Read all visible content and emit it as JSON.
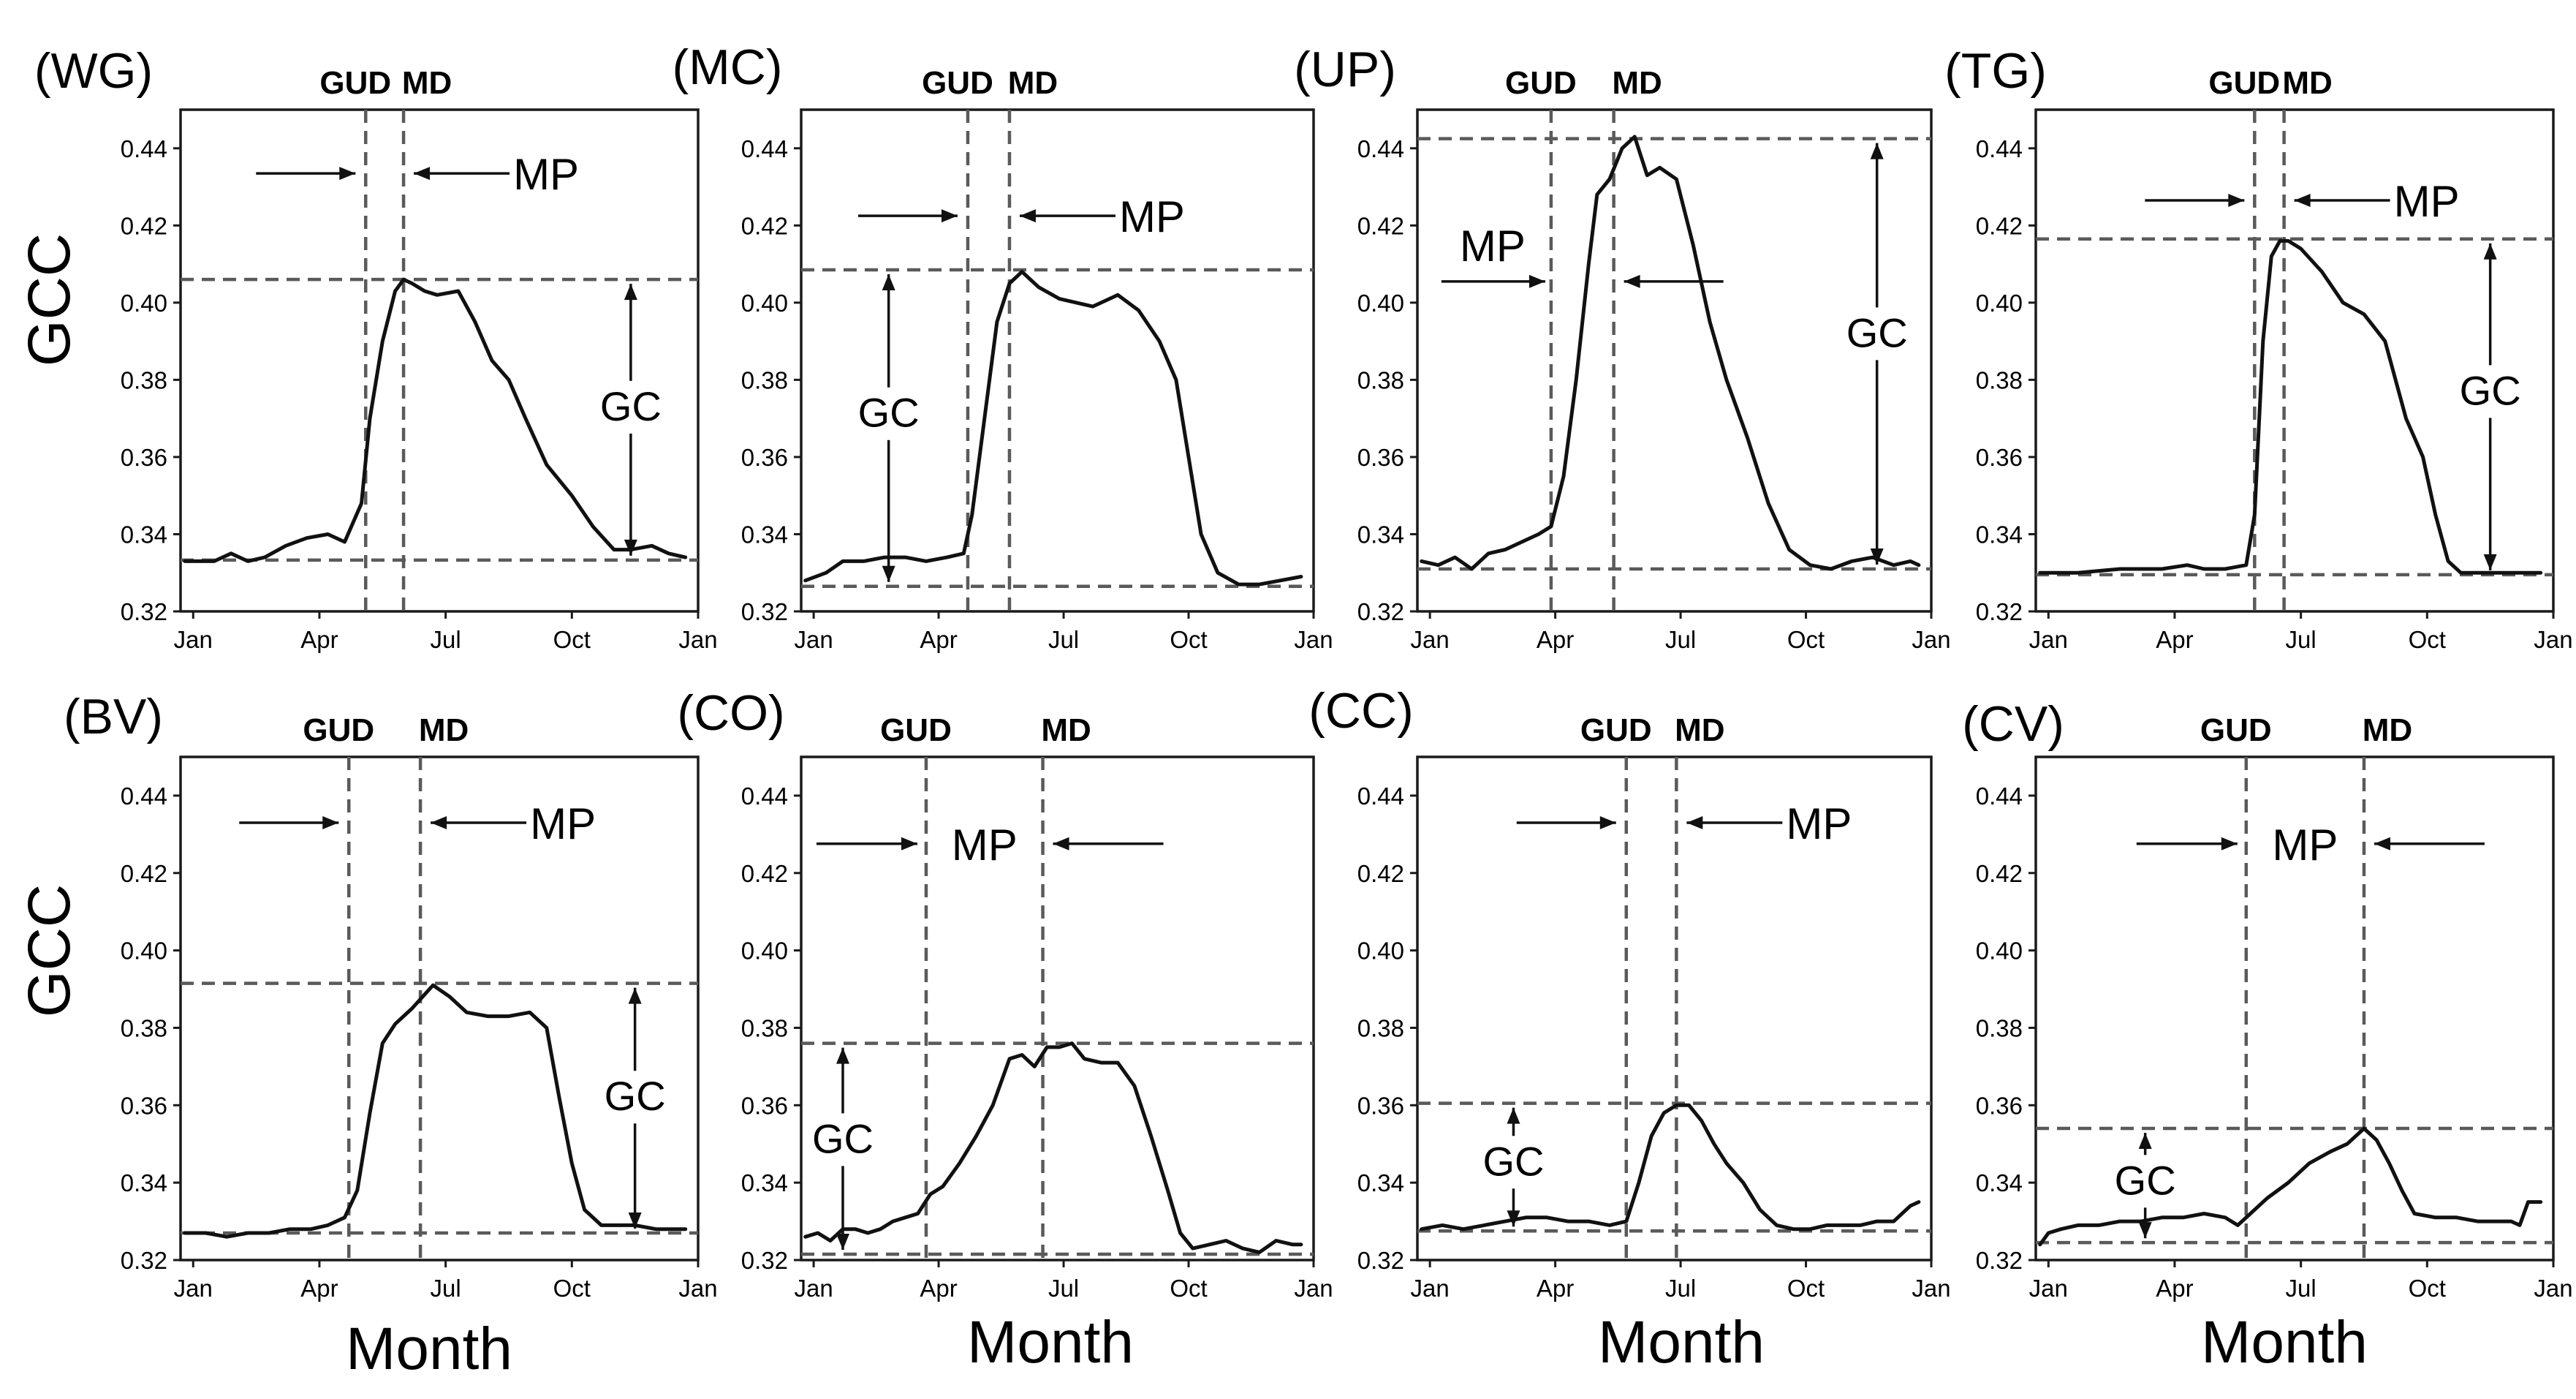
{
  "figure": {
    "y_axis_title": "GCC",
    "x_axis_title": "Month",
    "marker_labels": {
      "gud": "GUD",
      "md": "MD",
      "mp": "MP",
      "gc": "GC"
    }
  },
  "chart_data": [
    {
      "type": "line",
      "label": "(WG)",
      "x_ticks": [
        "Jan",
        "Apr",
        "Jul",
        "Oct",
        "Jan"
      ],
      "y_ticks": [
        "0.32",
        "0.34",
        "0.36",
        "0.38",
        "0.40",
        "0.42",
        "0.44"
      ],
      "ylim": [
        0.32,
        0.45
      ],
      "xlim": [
        0,
        12.3
      ],
      "gud_month": 4.4,
      "md_month": 5.3,
      "baseline_gcc": 0.3333,
      "peak_gcc": 0.406,
      "mp_label_pos": "right",
      "gc_annotation_month": 10.7,
      "series": [
        {
          "name": "GCC",
          "x": [
            0.1,
            0.8,
            1.2,
            1.6,
            2.0,
            2.5,
            3.0,
            3.5,
            3.9,
            4.3,
            4.5,
            4.8,
            5.1,
            5.3,
            5.5,
            5.8,
            6.1,
            6.6,
            7.0,
            7.4,
            7.8,
            8.2,
            8.7,
            9.3,
            9.8,
            10.3,
            10.7,
            11.2,
            11.6,
            12.0
          ],
          "values": [
            0.333,
            0.333,
            0.335,
            0.333,
            0.334,
            0.337,
            0.339,
            0.34,
            0.338,
            0.348,
            0.37,
            0.39,
            0.403,
            0.406,
            0.405,
            0.403,
            0.402,
            0.403,
            0.395,
            0.385,
            0.38,
            0.37,
            0.358,
            0.35,
            0.342,
            0.336,
            0.336,
            0.337,
            0.335,
            0.334
          ]
        }
      ]
    },
    {
      "type": "line",
      "label": "(MC)",
      "x_ticks": [
        "Jan",
        "Apr",
        "Jul",
        "Oct",
        "Jan"
      ],
      "y_ticks": [
        "0.32",
        "0.34",
        "0.36",
        "0.38",
        "0.40",
        "0.42",
        "0.44"
      ],
      "ylim": [
        0.32,
        0.45
      ],
      "xlim": [
        0,
        12.3
      ],
      "gud_month": 4.0,
      "md_month": 5.0,
      "baseline_gcc": 0.3265,
      "peak_gcc": 0.4085,
      "mp_label_pos": "right",
      "gc_annotation_month": 2.1,
      "series": [
        {
          "name": "GCC",
          "x": [
            0.1,
            0.6,
            1.0,
            1.5,
            2.0,
            2.5,
            3.0,
            3.5,
            3.9,
            4.1,
            4.4,
            4.7,
            5.0,
            5.3,
            5.7,
            6.2,
            6.6,
            7.0,
            7.6,
            8.1,
            8.6,
            9.0,
            9.3,
            9.6,
            10.0,
            10.5,
            11.0,
            11.5,
            12.0
          ],
          "values": [
            0.328,
            0.33,
            0.333,
            0.333,
            0.334,
            0.334,
            0.333,
            0.334,
            0.335,
            0.345,
            0.37,
            0.395,
            0.405,
            0.408,
            0.404,
            0.401,
            0.4,
            0.399,
            0.402,
            0.398,
            0.39,
            0.38,
            0.36,
            0.34,
            0.33,
            0.327,
            0.327,
            0.328,
            0.329
          ]
        }
      ]
    },
    {
      "type": "line",
      "label": "(UP)",
      "x_ticks": [
        "Jan",
        "Apr",
        "Jul",
        "Oct",
        "Jan"
      ],
      "y_ticks": [
        "0.32",
        "0.34",
        "0.36",
        "0.38",
        "0.40",
        "0.42",
        "0.44"
      ],
      "ylim": [
        0.32,
        0.45
      ],
      "xlim": [
        0,
        12.3
      ],
      "gud_month": 3.2,
      "md_month": 4.7,
      "baseline_gcc": 0.331,
      "peak_gcc": 0.4425,
      "mp_label_pos": "left",
      "gc_annotation_month": 11.0,
      "series": [
        {
          "name": "GCC",
          "x": [
            0.1,
            0.5,
            0.9,
            1.3,
            1.7,
            2.1,
            2.5,
            2.9,
            3.2,
            3.5,
            3.8,
            4.1,
            4.3,
            4.6,
            4.9,
            5.2,
            5.5,
            5.8,
            6.2,
            6.6,
            7.0,
            7.4,
            7.9,
            8.4,
            8.9,
            9.4,
            9.9,
            10.4,
            10.9,
            11.4,
            11.8,
            12.0
          ],
          "values": [
            0.333,
            0.332,
            0.334,
            0.331,
            0.335,
            0.336,
            0.338,
            0.34,
            0.342,
            0.355,
            0.38,
            0.41,
            0.428,
            0.432,
            0.44,
            0.443,
            0.433,
            0.435,
            0.432,
            0.415,
            0.395,
            0.38,
            0.365,
            0.348,
            0.336,
            0.332,
            0.331,
            0.333,
            0.334,
            0.332,
            0.333,
            0.332
          ]
        }
      ]
    },
    {
      "type": "line",
      "label": "(TG)",
      "x_ticks": [
        "Jan",
        "Apr",
        "Jul",
        "Oct",
        "Jan"
      ],
      "y_ticks": [
        "0.32",
        "0.34",
        "0.36",
        "0.38",
        "0.40",
        "0.42",
        "0.44"
      ],
      "ylim": [
        0.32,
        0.45
      ],
      "xlim": [
        0,
        12.3
      ],
      "gud_month": 5.2,
      "md_month": 5.9,
      "baseline_gcc": 0.3295,
      "peak_gcc": 0.4165,
      "mp_label_pos": "right",
      "gc_annotation_month": 10.8,
      "series": [
        {
          "name": "GCC",
          "x": [
            0.1,
            1.0,
            2.0,
            3.0,
            3.6,
            4.0,
            4.5,
            5.0,
            5.2,
            5.4,
            5.6,
            5.8,
            6.0,
            6.3,
            6.8,
            7.3,
            7.8,
            8.3,
            8.8,
            9.2,
            9.5,
            9.8,
            10.1,
            10.5,
            11.0,
            11.5,
            12.0
          ],
          "values": [
            0.33,
            0.33,
            0.331,
            0.331,
            0.332,
            0.331,
            0.331,
            0.332,
            0.345,
            0.39,
            0.412,
            0.416,
            0.416,
            0.414,
            0.408,
            0.4,
            0.397,
            0.39,
            0.37,
            0.36,
            0.345,
            0.333,
            0.33,
            0.33,
            0.33,
            0.33,
            0.33
          ]
        }
      ]
    },
    {
      "type": "line",
      "label": "(BV)",
      "x_ticks": [
        "Jan",
        "Apr",
        "Jul",
        "Oct",
        "Jan"
      ],
      "y_ticks": [
        "0.32",
        "0.34",
        "0.36",
        "0.38",
        "0.40",
        "0.42",
        "0.44"
      ],
      "ylim": [
        0.32,
        0.45
      ],
      "xlim": [
        0,
        12.3
      ],
      "gud_month": 4.0,
      "md_month": 5.7,
      "baseline_gcc": 0.327,
      "peak_gcc": 0.3915,
      "mp_label_pos": "right",
      "gc_annotation_month": 10.8,
      "series": [
        {
          "name": "GCC",
          "x": [
            0.1,
            0.6,
            1.1,
            1.6,
            2.1,
            2.6,
            3.1,
            3.5,
            3.9,
            4.2,
            4.5,
            4.8,
            5.1,
            5.5,
            6.0,
            6.4,
            6.8,
            7.3,
            7.8,
            8.3,
            8.7,
            9.0,
            9.3,
            9.6,
            10.0,
            10.4,
            10.8,
            11.3,
            11.8,
            12.0
          ],
          "values": [
            0.327,
            0.327,
            0.326,
            0.327,
            0.327,
            0.328,
            0.328,
            0.329,
            0.331,
            0.338,
            0.358,
            0.376,
            0.381,
            0.385,
            0.391,
            0.388,
            0.384,
            0.383,
            0.383,
            0.384,
            0.38,
            0.362,
            0.345,
            0.333,
            0.329,
            0.329,
            0.329,
            0.328,
            0.328,
            0.328
          ]
        }
      ]
    },
    {
      "type": "line",
      "label": "(CO)",
      "x_ticks": [
        "Jan",
        "Apr",
        "Jul",
        "Oct",
        "Jan"
      ],
      "y_ticks": [
        "0.32",
        "0.34",
        "0.36",
        "0.38",
        "0.40",
        "0.42",
        "0.44"
      ],
      "ylim": [
        0.32,
        0.45
      ],
      "xlim": [
        0,
        12.3
      ],
      "gud_month": 3.0,
      "md_month": 5.8,
      "baseline_gcc": 0.3215,
      "peak_gcc": 0.376,
      "mp_label_pos": "between",
      "gc_annotation_month": 1.0,
      "series": [
        {
          "name": "GCC",
          "x": [
            0.1,
            0.4,
            0.7,
            1.0,
            1.3,
            1.6,
            1.9,
            2.2,
            2.5,
            2.8,
            3.1,
            3.4,
            3.8,
            4.2,
            4.6,
            5.0,
            5.3,
            5.6,
            5.9,
            6.2,
            6.5,
            6.8,
            7.2,
            7.6,
            8.0,
            8.4,
            8.8,
            9.1,
            9.4,
            9.8,
            10.2,
            10.6,
            11.0,
            11.4,
            11.8,
            12.0
          ],
          "values": [
            0.326,
            0.327,
            0.325,
            0.328,
            0.328,
            0.327,
            0.328,
            0.33,
            0.331,
            0.332,
            0.337,
            0.339,
            0.345,
            0.352,
            0.36,
            0.372,
            0.373,
            0.37,
            0.375,
            0.375,
            0.376,
            0.372,
            0.371,
            0.371,
            0.365,
            0.352,
            0.338,
            0.327,
            0.323,
            0.324,
            0.325,
            0.323,
            0.322,
            0.325,
            0.324,
            0.324
          ]
        }
      ]
    },
    {
      "type": "line",
      "label": "(CC)",
      "x_ticks": [
        "Jan",
        "Apr",
        "Jul",
        "Oct",
        "Jan"
      ],
      "y_ticks": [
        "0.32",
        "0.34",
        "0.36",
        "0.38",
        "0.40",
        "0.42",
        "0.44"
      ],
      "ylim": [
        0.32,
        0.45
      ],
      "xlim": [
        0,
        12.3
      ],
      "gud_month": 5.0,
      "md_month": 6.2,
      "baseline_gcc": 0.3275,
      "peak_gcc": 0.3605,
      "mp_label_pos": "right",
      "gc_annotation_month": 2.3,
      "series": [
        {
          "name": "GCC",
          "x": [
            0.1,
            0.6,
            1.1,
            1.6,
            2.1,
            2.6,
            3.1,
            3.6,
            4.1,
            4.6,
            5.0,
            5.3,
            5.6,
            5.9,
            6.2,
            6.5,
            6.8,
            7.1,
            7.4,
            7.8,
            8.2,
            8.6,
            9.0,
            9.4,
            9.8,
            10.2,
            10.6,
            11.0,
            11.4,
            11.8,
            12.0
          ],
          "values": [
            0.328,
            0.329,
            0.328,
            0.329,
            0.33,
            0.331,
            0.331,
            0.33,
            0.33,
            0.329,
            0.33,
            0.34,
            0.352,
            0.358,
            0.36,
            0.36,
            0.356,
            0.35,
            0.345,
            0.34,
            0.333,
            0.329,
            0.328,
            0.328,
            0.329,
            0.329,
            0.329,
            0.33,
            0.33,
            0.334,
            0.335
          ]
        }
      ]
    },
    {
      "type": "line",
      "label": "(CV)",
      "x_ticks": [
        "Jan",
        "Apr",
        "Jul",
        "Oct",
        "Jan"
      ],
      "y_ticks": [
        "0.32",
        "0.34",
        "0.36",
        "0.38",
        "0.40",
        "0.42",
        "0.44"
      ],
      "ylim": [
        0.32,
        0.45
      ],
      "xlim": [
        0,
        12.3
      ],
      "gud_month": 5.0,
      "md_month": 7.8,
      "baseline_gcc": 0.3245,
      "peak_gcc": 0.354,
      "mp_label_pos": "between",
      "gc_annotation_month": 2.6,
      "series": [
        {
          "name": "GCC",
          "x": [
            0.1,
            0.3,
            0.6,
            1.0,
            1.5,
            2.0,
            2.5,
            3.0,
            3.5,
            4.0,
            4.5,
            4.8,
            5.1,
            5.5,
            6.0,
            6.5,
            7.0,
            7.4,
            7.8,
            8.1,
            8.4,
            8.7,
            9.0,
            9.5,
            10.0,
            10.5,
            11.0,
            11.3,
            11.5,
            11.7,
            11.9,
            12.0
          ],
          "values": [
            0.324,
            0.327,
            0.328,
            0.329,
            0.329,
            0.33,
            0.33,
            0.331,
            0.331,
            0.332,
            0.331,
            0.329,
            0.332,
            0.336,
            0.34,
            0.345,
            0.348,
            0.35,
            0.354,
            0.351,
            0.345,
            0.338,
            0.332,
            0.331,
            0.331,
            0.33,
            0.33,
            0.33,
            0.329,
            0.335,
            0.335,
            0.335
          ]
        }
      ]
    }
  ]
}
